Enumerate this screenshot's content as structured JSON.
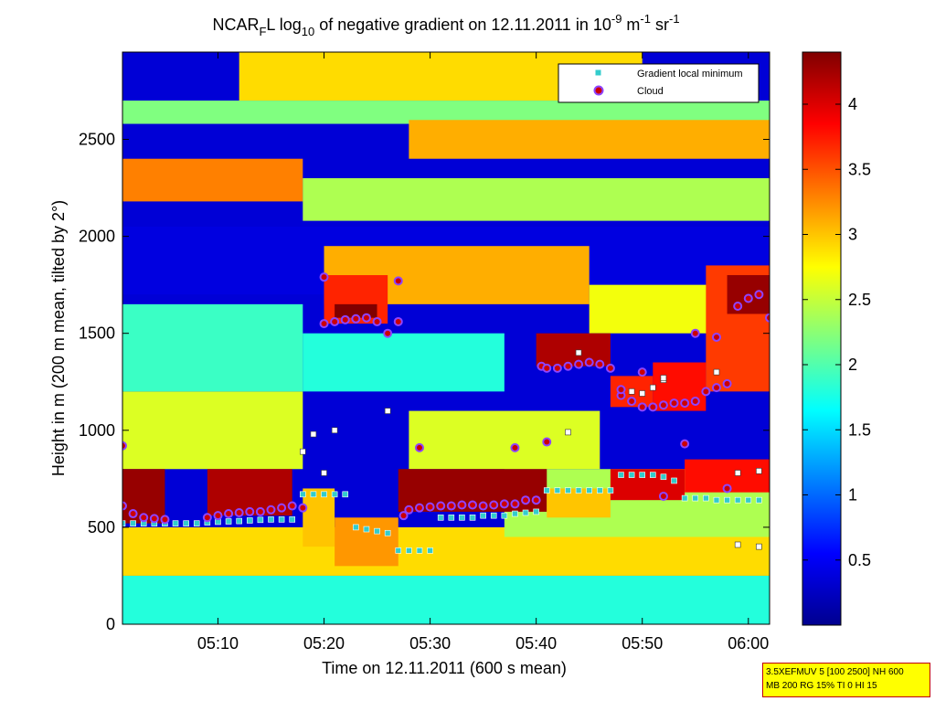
{
  "chart_data": {
    "type": "heatmap",
    "title": {
      "prefix": "NCAR",
      "prefix_sub": "F",
      "part2": "L log",
      "part2_sub": "10",
      "part3": " of negative gradient on 12.11.2011 in 10",
      "exp1": "-9",
      "part4": " m",
      "exp2": "-1",
      "part5": " sr",
      "exp3": "-1"
    },
    "xlabel": "Time on 12.11.2011 (600 s mean)",
    "ylabel": "Height in m (200 m mean, tilted by 2°)",
    "x_range_minutes": [
      301,
      362
    ],
    "x_ticks": [
      {
        "label": "05:10",
        "minute": 310
      },
      {
        "label": "05:20",
        "minute": 320
      },
      {
        "label": "05:30",
        "minute": 330
      },
      {
        "label": "05:40",
        "minute": 340
      },
      {
        "label": "05:50",
        "minute": 350
      },
      {
        "label": "06:00",
        "minute": 360
      }
    ],
    "ylim": [
      0,
      2950
    ],
    "y_ticks": [
      {
        "label": "0",
        "value": 0
      },
      {
        "label": "500",
        "value": 500
      },
      {
        "label": "1000",
        "value": 1000
      },
      {
        "label": "1500",
        "value": 1500
      },
      {
        "label": "2000",
        "value": 2000
      },
      {
        "label": "2500",
        "value": 2500
      }
    ],
    "colorbar": {
      "range": [
        0,
        4.4
      ],
      "ticks": [
        {
          "label": "0.5",
          "value": 0.5
        },
        {
          "label": "1",
          "value": 1
        },
        {
          "label": "1.5",
          "value": 1.5
        },
        {
          "label": "2",
          "value": 2
        },
        {
          "label": "2.5",
          "value": 2.5
        },
        {
          "label": "3",
          "value": 3
        },
        {
          "label": "3.5",
          "value": 3.5
        },
        {
          "label": "4",
          "value": 4
        }
      ]
    },
    "legend": {
      "placement": "top-right",
      "entries": [
        {
          "label": "Gradient local minimum",
          "marker": "square",
          "color": "#33cccc"
        },
        {
          "label": "Cloud",
          "marker": "circle",
          "color": "#cc0000"
        }
      ]
    },
    "layers": [
      {
        "t0": 301,
        "t1": 362,
        "h0": 0,
        "h1": 2950,
        "v": 0.35
      },
      {
        "t0": 301,
        "t1": 362,
        "h0": 0,
        "h1": 250,
        "v": 1.8
      },
      {
        "t0": 301,
        "t1": 362,
        "h0": 250,
        "h1": 500,
        "v": 2.9
      },
      {
        "t0": 301,
        "t1": 318,
        "h0": 800,
        "h1": 1200,
        "v": 2.6
      },
      {
        "t0": 301,
        "t1": 318,
        "h0": 1200,
        "h1": 1650,
        "v": 1.9
      },
      {
        "t0": 301,
        "t1": 362,
        "h0": 1700,
        "h1": 2050,
        "v": 0.4
      },
      {
        "t0": 301,
        "t1": 318,
        "h0": 2180,
        "h1": 2400,
        "v": 3.3
      },
      {
        "t0": 318,
        "t1": 362,
        "h0": 2080,
        "h1": 2300,
        "v": 2.4
      },
      {
        "t0": 301,
        "t1": 362,
        "h0": 2580,
        "h1": 2700,
        "v": 2.2
      },
      {
        "t0": 312,
        "t1": 350,
        "h0": 2700,
        "h1": 2950,
        "v": 2.9
      },
      {
        "t0": 328,
        "t1": 362,
        "h0": 2400,
        "h1": 2600,
        "v": 3.1
      },
      {
        "t0": 318,
        "t1": 337,
        "h0": 1200,
        "h1": 1500,
        "v": 1.8
      },
      {
        "t0": 320,
        "t1": 345,
        "h0": 1650,
        "h1": 1950,
        "v": 3.1
      },
      {
        "t0": 345,
        "t1": 362,
        "h0": 1500,
        "h1": 1750,
        "v": 2.7
      },
      {
        "t0": 328,
        "t1": 346,
        "h0": 800,
        "h1": 1100,
        "v": 2.6
      },
      {
        "t0": 337,
        "t1": 362,
        "h0": 450,
        "h1": 800,
        "v": 2.4
      },
      {
        "t0": 301,
        "t1": 305,
        "h0": 520,
        "h1": 800,
        "v": 4.3
      },
      {
        "t0": 309,
        "t1": 317,
        "h0": 560,
        "h1": 800,
        "v": 4.2
      },
      {
        "t0": 318,
        "t1": 321,
        "h0": 400,
        "h1": 700,
        "v": 3.0
      },
      {
        "t0": 321,
        "t1": 327,
        "h0": 300,
        "h1": 550,
        "v": 3.2
      },
      {
        "t0": 327,
        "t1": 341,
        "h0": 580,
        "h1": 800,
        "v": 4.3
      },
      {
        "t0": 341,
        "t1": 347,
        "h0": 550,
        "h1": 700,
        "v": 3.0
      },
      {
        "t0": 347,
        "t1": 354,
        "h0": 640,
        "h1": 800,
        "v": 4.0
      },
      {
        "t0": 354,
        "t1": 362,
        "h0": 680,
        "h1": 850,
        "v": 3.8
      },
      {
        "t0": 320,
        "t1": 326,
        "h0": 1550,
        "h1": 1800,
        "v": 3.7
      },
      {
        "t0": 321,
        "t1": 325,
        "h0": 1580,
        "h1": 1650,
        "v": 4.4
      },
      {
        "t0": 340,
        "t1": 347,
        "h0": 1330,
        "h1": 1500,
        "v": 4.2
      },
      {
        "t0": 347,
        "t1": 351,
        "h0": 1120,
        "h1": 1280,
        "v": 3.7
      },
      {
        "t0": 351,
        "t1": 356,
        "h0": 1100,
        "h1": 1350,
        "v": 3.8
      },
      {
        "t0": 356,
        "t1": 362,
        "h0": 1200,
        "h1": 1850,
        "v": 3.6
      },
      {
        "t0": 358,
        "t1": 362,
        "h0": 1600,
        "h1": 1800,
        "v": 4.3
      }
    ],
    "series": [
      {
        "name": "Gradient local minimum",
        "points": [
          [
            301,
            520
          ],
          [
            302,
            520
          ],
          [
            303,
            520
          ],
          [
            304,
            520
          ],
          [
            305,
            520
          ],
          [
            306,
            520
          ],
          [
            307,
            520
          ],
          [
            308,
            520
          ],
          [
            309,
            525
          ],
          [
            310,
            528
          ],
          [
            311,
            530
          ],
          [
            312,
            532
          ],
          [
            313,
            535
          ],
          [
            314,
            538
          ],
          [
            315,
            540
          ],
          [
            316,
            540
          ],
          [
            317,
            540
          ],
          [
            318,
            670
          ],
          [
            319,
            670
          ],
          [
            320,
            670
          ],
          [
            321,
            670
          ],
          [
            322,
            670
          ],
          [
            323,
            500
          ],
          [
            324,
            490
          ],
          [
            325,
            480
          ],
          [
            326,
            470
          ],
          [
            327,
            380
          ],
          [
            328,
            380
          ],
          [
            329,
            380
          ],
          [
            330,
            380
          ],
          [
            331,
            550
          ],
          [
            332,
            550
          ],
          [
            333,
            550
          ],
          [
            334,
            550
          ],
          [
            335,
            560
          ],
          [
            336,
            560
          ],
          [
            337,
            560
          ],
          [
            338,
            570
          ],
          [
            339,
            575
          ],
          [
            340,
            580
          ],
          [
            341,
            690
          ],
          [
            342,
            690
          ],
          [
            343,
            690
          ],
          [
            344,
            690
          ],
          [
            345,
            690
          ],
          [
            346,
            690
          ],
          [
            347,
            690
          ],
          [
            348,
            770
          ],
          [
            349,
            770
          ],
          [
            350,
            770
          ],
          [
            351,
            770
          ],
          [
            352,
            760
          ],
          [
            353,
            740
          ],
          [
            354,
            650
          ],
          [
            355,
            650
          ],
          [
            356,
            650
          ],
          [
            357,
            640
          ],
          [
            358,
            640
          ],
          [
            359,
            640
          ],
          [
            360,
            640
          ],
          [
            361,
            640
          ]
        ]
      },
      {
        "name": "Cloud",
        "points": [
          [
            301,
            610
          ],
          [
            302,
            570
          ],
          [
            303,
            550
          ],
          [
            304,
            545
          ],
          [
            305,
            540
          ],
          [
            309,
            550
          ],
          [
            310,
            560
          ],
          [
            311,
            570
          ],
          [
            312,
            575
          ],
          [
            313,
            580
          ],
          [
            314,
            580
          ],
          [
            315,
            590
          ],
          [
            316,
            600
          ],
          [
            317,
            610
          ],
          [
            318,
            600
          ],
          [
            320,
            1550
          ],
          [
            321,
            1560
          ],
          [
            322,
            1570
          ],
          [
            323,
            1575
          ],
          [
            324,
            1580
          ],
          [
            325,
            1560
          ],
          [
            326,
            1500
          ],
          [
            327,
            1560
          ],
          [
            327.5,
            560
          ],
          [
            328,
            590
          ],
          [
            329,
            600
          ],
          [
            330,
            605
          ],
          [
            331,
            610
          ],
          [
            332,
            610
          ],
          [
            333,
            615
          ],
          [
            334,
            615
          ],
          [
            335,
            610
          ],
          [
            336,
            615
          ],
          [
            337,
            620
          ],
          [
            338,
            620
          ],
          [
            339,
            640
          ],
          [
            340,
            640
          ],
          [
            340.5,
            1330
          ],
          [
            341,
            1320
          ],
          [
            342,
            1320
          ],
          [
            343,
            1330
          ],
          [
            344,
            1340
          ],
          [
            345,
            1350
          ],
          [
            346,
            1340
          ],
          [
            347,
            1320
          ],
          [
            348,
            1180
          ],
          [
            349,
            1150
          ],
          [
            350,
            1120
          ],
          [
            351,
            1120
          ],
          [
            352,
            1130
          ],
          [
            353,
            1140
          ],
          [
            354,
            1140
          ],
          [
            355,
            1150
          ],
          [
            356,
            1200
          ],
          [
            357,
            1220
          ],
          [
            358,
            1240
          ],
          [
            359,
            1640
          ],
          [
            360,
            1680
          ],
          [
            361,
            1700
          ],
          [
            362,
            1580
          ],
          [
            301,
            920
          ],
          [
            320,
            1790
          ],
          [
            327,
            1770
          ],
          [
            329,
            910
          ],
          [
            338,
            910
          ],
          [
            341,
            940
          ],
          [
            348,
            1210
          ],
          [
            350,
            1300
          ],
          [
            354,
            930
          ],
          [
            355,
            1500
          ],
          [
            358,
            700
          ],
          [
            352,
            660
          ],
          [
            357,
            1480
          ]
        ]
      }
    ],
    "extra_squares": [
      [
        318,
        890
      ],
      [
        319,
        980
      ],
      [
        320,
        780
      ],
      [
        321,
        1000
      ],
      [
        326,
        1100
      ],
      [
        343,
        990
      ],
      [
        349,
        1200
      ],
      [
        350,
        1190
      ],
      [
        351,
        1220
      ],
      [
        352,
        1260
      ],
      [
        359,
        780
      ],
      [
        361,
        790
      ],
      [
        357,
        1300
      ],
      [
        344,
        1400
      ],
      [
        352,
        1270
      ],
      [
        359,
        410
      ],
      [
        361,
        400
      ]
    ]
  },
  "info_box": {
    "line1": "3.5XEFMUV 5 [100 2500] NH 600",
    "line2": "MB 200 RG 15% TI 0 HI 15"
  },
  "colors": {
    "frame": "#000000",
    "info_bg": "#ffff00",
    "info_border": "#c00000",
    "square_marker": "#33cccc",
    "cloud_marker": "#cc0000",
    "cloud_outline": "#8e44ff"
  }
}
